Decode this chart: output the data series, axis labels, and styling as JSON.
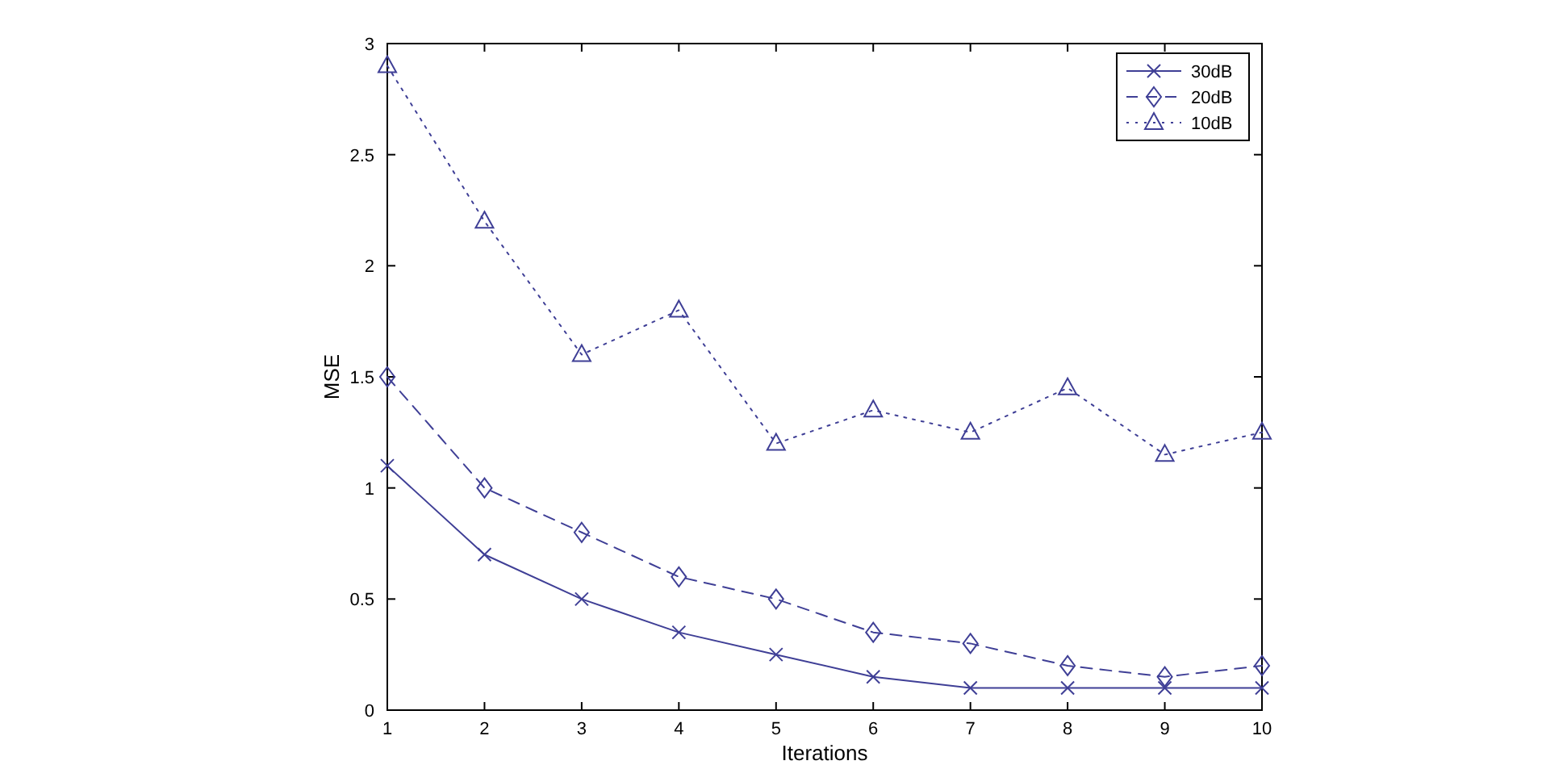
{
  "chart_data": {
    "type": "line",
    "xlabel": "Iterations",
    "ylabel": "MSE",
    "x": [
      1,
      2,
      3,
      4,
      5,
      6,
      7,
      8,
      9,
      10
    ],
    "xlim": [
      1,
      10
    ],
    "xticks": [
      1,
      2,
      3,
      4,
      5,
      6,
      7,
      8,
      9,
      10
    ],
    "ylim": [
      0,
      3
    ],
    "yticks": [
      0,
      0.5,
      1,
      1.5,
      2,
      2.5,
      3
    ],
    "legend": "top right",
    "series": [
      {
        "name": "30dB",
        "color": "#3f3f96",
        "marker": "cross",
        "line_style": "solid",
        "values": [
          1.1,
          0.7,
          0.5,
          0.35,
          0.25,
          0.15,
          0.1,
          0.1,
          0.1,
          0.1
        ]
      },
      {
        "name": "20dB",
        "color": "#3f3f96",
        "marker": "diamond",
        "line_style": "dashed",
        "values": [
          1.5,
          1.0,
          0.8,
          0.6,
          0.5,
          0.35,
          0.3,
          0.2,
          0.15,
          0.2
        ]
      },
      {
        "name": "10dB",
        "color": "#3f3f96",
        "marker": "triangle",
        "line_style": "dotted",
        "values": [
          2.9,
          2.2,
          1.6,
          1.8,
          1.2,
          1.35,
          1.25,
          1.45,
          1.15,
          1.25
        ]
      }
    ]
  }
}
